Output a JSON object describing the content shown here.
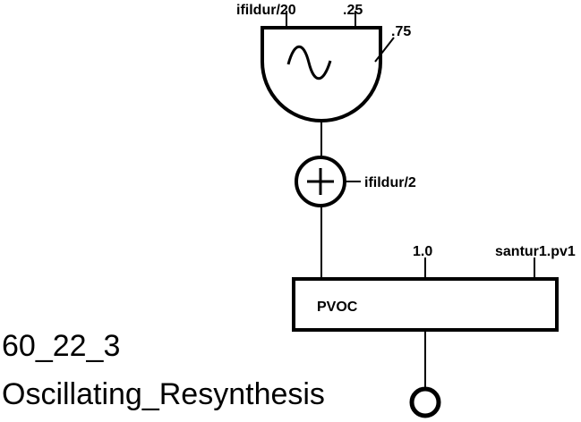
{
  "oscillator": {
    "icon": "sine-wave-icon",
    "input_amplitude": "ifildur/20",
    "input_frequency": ".25",
    "input_phase": ".75"
  },
  "adder": {
    "icon": "plus-icon",
    "input_offset": "ifildur/2"
  },
  "pvoc": {
    "label": "PVOC",
    "input_pitch": "1.0",
    "input_file": "santur1.pv1"
  },
  "output": {
    "icon": "output-circle-icon"
  },
  "caption": {
    "number": "60_22_3",
    "name": "Oscillating_Resynthesis"
  }
}
